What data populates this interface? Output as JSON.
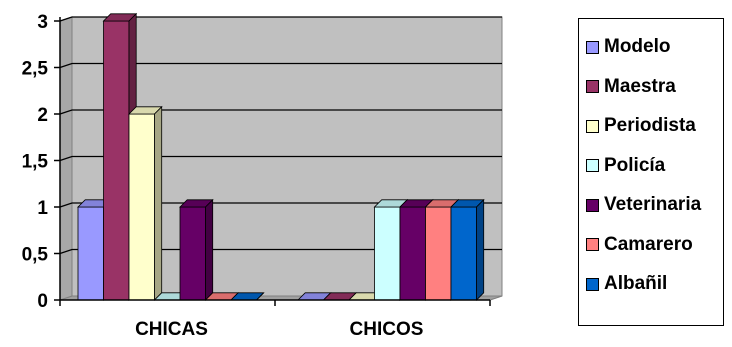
{
  "chart_data": {
    "type": "bar",
    "categories": [
      "CHICAS",
      "CHICOS"
    ],
    "y_ticks": [
      "0",
      "0,5",
      "1",
      "1,5",
      "2",
      "2,5",
      "3"
    ],
    "ylim": [
      0,
      3
    ],
    "grid": true,
    "legend_position": "right",
    "series": [
      {
        "name": "Modelo",
        "values": [
          1,
          0
        ],
        "color": "#9999ff"
      },
      {
        "name": "Maestra",
        "values": [
          3,
          0
        ],
        "color": "#993366"
      },
      {
        "name": "Periodista",
        "values": [
          2,
          0
        ],
        "color": "#ffffcc"
      },
      {
        "name": "Policía",
        "values": [
          0,
          1
        ],
        "color": "#ccffff"
      },
      {
        "name": "Veterinaria",
        "values": [
          1,
          1
        ],
        "color": "#660066"
      },
      {
        "name": "Camarero",
        "values": [
          0,
          1
        ],
        "color": "#ff8080"
      },
      {
        "name": "Albañil",
        "values": [
          0,
          1
        ],
        "color": "#0066cc"
      }
    ]
  }
}
